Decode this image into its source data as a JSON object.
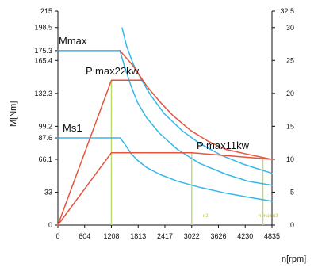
{
  "chart_data": {
    "type": "line",
    "x_axis": {
      "label": "n[rpm]",
      "range": [
        0,
        4835
      ],
      "ticks": [
        0,
        604,
        1208,
        1813,
        2417,
        3022,
        3626,
        4230,
        4835
      ],
      "tick_labels": [
        "0",
        "604",
        "1208",
        "1813",
        "2417",
        "3022",
        "3626",
        "4230",
        "4835"
      ]
    },
    "y_left": {
      "label": "M[Nm]",
      "range": [
        0,
        215
      ],
      "ticks": [
        0,
        33,
        66.1,
        87.6,
        99.2,
        132.3,
        165.4,
        175.3,
        198.5,
        215
      ],
      "tick_labels": [
        "0",
        "33",
        "66.1",
        "87.6",
        "99.2",
        "132.3",
        "165.4",
        "175.3",
        "198.5",
        "215"
      ]
    },
    "y_right": {
      "label": "",
      "range": [
        0,
        32.5
      ],
      "ticks": [
        0,
        5,
        10,
        15,
        20,
        25,
        30,
        32.5
      ],
      "tick_labels": [
        "0",
        "5",
        "10",
        "15",
        "20",
        "25",
        "30",
        "32.5"
      ]
    },
    "grid": false,
    "annotations": {
      "mmax": "Mmax",
      "pmax22": "P max22kw",
      "ms1": "Ms1",
      "pmax11": "P max11kw",
      "small_left": "n2",
      "small_right": "n max n3"
    },
    "series": [
      {
        "color": "#33b8ea",
        "points": [
          [
            0,
            175.3
          ],
          [
            1400,
            175.3
          ],
          [
            1500,
            160
          ],
          [
            1650,
            140
          ],
          [
            1800,
            123
          ],
          [
            2000,
            108
          ],
          [
            2300,
            92
          ],
          [
            2700,
            76
          ],
          [
            3200,
            62
          ],
          [
            3800,
            51
          ],
          [
            4300,
            44
          ],
          [
            4835,
            40
          ]
        ]
      },
      {
        "color": "#33b8ea",
        "points": [
          [
            1450,
            198
          ],
          [
            1550,
            180
          ],
          [
            1700,
            162
          ],
          [
            1900,
            145
          ],
          [
            2100,
            130
          ],
          [
            2400,
            112
          ],
          [
            2800,
            95
          ],
          [
            3200,
            82
          ],
          [
            3700,
            70
          ],
          [
            4200,
            61
          ],
          [
            4835,
            52
          ]
        ]
      },
      {
        "color": "#33b8ea",
        "points": [
          [
            0,
            87.6
          ],
          [
            1400,
            87.6
          ],
          [
            1500,
            82
          ],
          [
            1650,
            72
          ],
          [
            1800,
            65
          ],
          [
            2000,
            58
          ],
          [
            2300,
            51
          ],
          [
            2700,
            44
          ],
          [
            3200,
            38
          ],
          [
            3800,
            32
          ],
          [
            4300,
            28
          ],
          [
            4835,
            24
          ]
        ]
      },
      {
        "color": "#e5543b",
        "points": [
          [
            0,
            0
          ],
          [
            1208,
            145.5
          ],
          [
            1900,
            145.5
          ]
        ]
      },
      {
        "color": "#e5543b",
        "points": [
          [
            1400,
            175.3
          ],
          [
            1700,
            160
          ],
          [
            2000,
            140
          ],
          [
            2300,
            124
          ],
          [
            2600,
            110
          ],
          [
            3000,
            95
          ],
          [
            3400,
            84
          ],
          [
            3800,
            76
          ],
          [
            4300,
            71
          ],
          [
            4835,
            66
          ]
        ]
      },
      {
        "color": "#e5543b",
        "points": [
          [
            0,
            0
          ],
          [
            1208,
            72.7
          ],
          [
            3022,
            72.7
          ],
          [
            4835,
            66.1
          ]
        ]
      }
    ],
    "verticals": [
      {
        "x": 1208,
        "y_top": 145.5,
        "color": "#b9dc6a"
      },
      {
        "x": 3022,
        "y_top": 72.7,
        "color": "#b9dc6a"
      },
      {
        "x": 4630,
        "y_top": 66.9,
        "color": "#b9dc6a"
      }
    ]
  }
}
